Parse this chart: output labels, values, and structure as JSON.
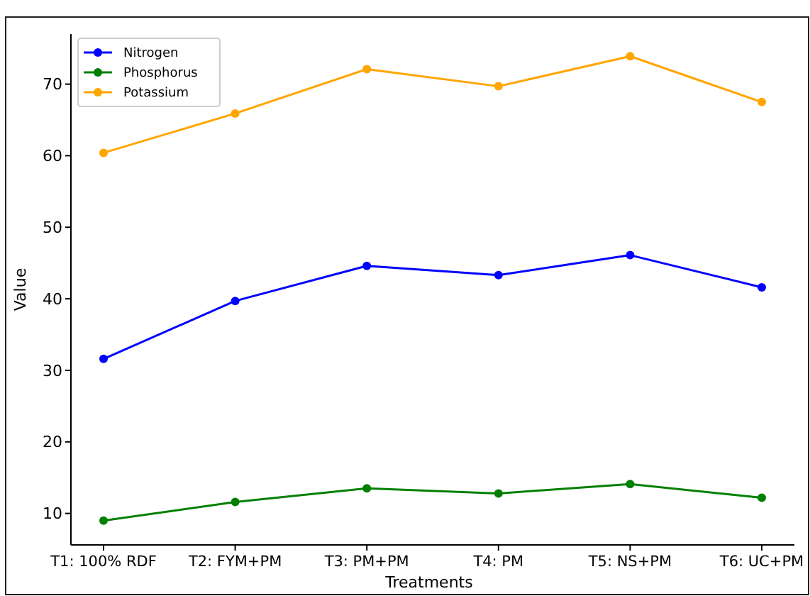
{
  "chart_data": {
    "type": "line",
    "xlabel": "Treatments",
    "ylabel": "Value",
    "categories": [
      "T1: 100% RDF",
      "T2: FYM+PM",
      "T3: PM+PM",
      "T4: PM",
      "T5: NS+PM",
      "T6: UC+PM"
    ],
    "series": [
      {
        "name": "Nitrogen",
        "color": "#0000ff",
        "values": [
          31.6,
          39.7,
          44.6,
          43.3,
          46.1,
          41.6
        ]
      },
      {
        "name": "Phosphorus",
        "color": "#008000",
        "values": [
          9.0,
          11.6,
          13.5,
          12.8,
          14.1,
          12.2
        ]
      },
      {
        "name": "Potassium",
        "color": "#ffa500",
        "values": [
          60.4,
          65.9,
          72.1,
          69.7,
          73.9,
          67.5
        ]
      }
    ],
    "ylim": [
      5.6,
      77
    ],
    "yticks": [
      10,
      20,
      30,
      40,
      50,
      60,
      70
    ],
    "grid": false,
    "legend": "top left",
    "marker": "circle",
    "line_style": "solid"
  }
}
